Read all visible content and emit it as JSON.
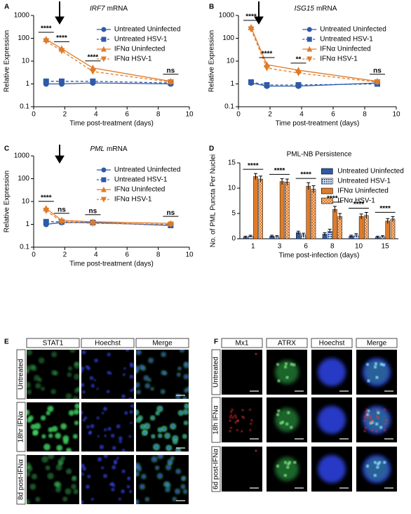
{
  "chart_data": [
    {
      "panel": "A",
      "type": "line",
      "title_italic": "IRF7",
      "title": "mRNA",
      "ylabel": "Relative Expression",
      "xlabel": "Time post-treatment (days)",
      "log_y": true,
      "ylim": [
        0.1,
        1000
      ],
      "yticks": [
        0.1,
        1,
        10,
        100,
        1000
      ],
      "xlim": [
        0,
        10
      ],
      "xticks": [
        0,
        2,
        4,
        6,
        8,
        10
      ],
      "legend": "upper right",
      "x": [
        0.8,
        1.8,
        3.8,
        8.8
      ],
      "significance": [
        "****",
        "****",
        "****",
        "ns"
      ],
      "series": [
        {
          "name": "Untreated Uninfected",
          "color": "#2f5aa8",
          "marker": "circle",
          "line_style": "solid",
          "values": [
            1.0,
            1.0,
            1.1,
            1.0
          ]
        },
        {
          "name": "Untreated HSV-1",
          "color": "#2f5aa8",
          "marker": "square",
          "line_style": "dashed",
          "values": [
            1.3,
            1.3,
            1.3,
            1.1
          ]
        },
        {
          "name": "IFNα Uninfected",
          "color": "#e07b28",
          "marker": "triangle-up",
          "line_style": "solid",
          "values": [
            90,
            35,
            5,
            1.3
          ]
        },
        {
          "name": "IFNα HSV-1",
          "color": "#e07b28",
          "marker": "triangle-down",
          "line_style": "dashed",
          "values": [
            75,
            28,
            3.5,
            1.2
          ]
        }
      ]
    },
    {
      "panel": "B",
      "type": "line",
      "title_italic": "ISG15",
      "title": "mRNA",
      "ylabel": "Relative Expression",
      "xlabel": "Time post-treatment (days)",
      "log_y": true,
      "ylim": [
        0.1,
        1000
      ],
      "yticks": [
        0.1,
        1,
        10,
        100,
        1000
      ],
      "xlim": [
        0,
        10
      ],
      "xticks": [
        0,
        2,
        4,
        6,
        8,
        10
      ],
      "legend": "upper right",
      "x": [
        0.8,
        1.8,
        3.8,
        8.8
      ],
      "significance": [
        "****",
        "****",
        "**",
        "ns"
      ],
      "series": [
        {
          "name": "Untreated Uninfected",
          "color": "#2f5aa8",
          "marker": "circle",
          "line_style": "solid",
          "values": [
            1.1,
            0.8,
            0.8,
            1.1
          ]
        },
        {
          "name": "Untreated HSV-1",
          "color": "#2f5aa8",
          "marker": "square",
          "line_style": "dashed",
          "values": [
            1.2,
            0.9,
            0.9,
            1.0
          ]
        },
        {
          "name": "IFNα Uninfected",
          "color": "#e07b28",
          "marker": "triangle-up",
          "line_style": "solid",
          "values": [
            300,
            7,
            4,
            1.3
          ]
        },
        {
          "name": "IFNα HSV-1",
          "color": "#e07b28",
          "marker": "triangle-down",
          "line_style": "dashed",
          "values": [
            250,
            5,
            3,
            1.2
          ]
        }
      ]
    },
    {
      "panel": "C",
      "type": "line",
      "title_italic": "PML",
      "title": "mRNA",
      "ylabel": "Relative Expression",
      "xlabel": "Time post-treatment (days)",
      "log_y": true,
      "ylim": [
        0.1,
        1000
      ],
      "yticks": [
        0.1,
        1,
        10,
        100,
        1000
      ],
      "xlim": [
        0,
        10
      ],
      "xticks": [
        0,
        2,
        4,
        6,
        8,
        10
      ],
      "legend": "upper right",
      "x": [
        0.8,
        1.8,
        3.8,
        8.8
      ],
      "significance": [
        "****",
        "ns",
        "ns",
        "ns"
      ],
      "series": [
        {
          "name": "Untreated Uninfected",
          "color": "#2f5aa8",
          "marker": "circle",
          "line_style": "solid",
          "values": [
            1.0,
            1.2,
            1.2,
            0.9
          ]
        },
        {
          "name": "Untreated HSV-1",
          "color": "#2f5aa8",
          "marker": "square",
          "line_style": "dashed",
          "values": [
            1.3,
            1.3,
            1.2,
            0.9
          ]
        },
        {
          "name": "IFNα Uninfected",
          "color": "#e07b28",
          "marker": "triangle-up",
          "line_style": "solid",
          "values": [
            5,
            1.5,
            1.3,
            1.1
          ]
        },
        {
          "name": "IFNα HSV-1",
          "color": "#e07b28",
          "marker": "triangle-down",
          "line_style": "dashed",
          "values": [
            4,
            1.3,
            1.1,
            1.0
          ]
        }
      ]
    },
    {
      "panel": "D",
      "type": "bar",
      "title": "PML-NB Persistence",
      "ylabel": "No. of PML Puncta Per Nuclei",
      "xlabel": "Time post-infection (days)",
      "ylim": [
        0,
        15
      ],
      "yticks": [
        0,
        5,
        10,
        15
      ],
      "legend": "upper right",
      "categories": [
        "1",
        "3",
        "6",
        "8",
        "10",
        "15"
      ],
      "significance": [
        "****",
        "****",
        "****",
        "****",
        "****",
        "****"
      ],
      "series": [
        {
          "name": "Untreated Uninfected",
          "color": "#2f5aa8",
          "pattern": "solid",
          "values": [
            0.3,
            0.5,
            1.2,
            0.9,
            0.5,
            0.3
          ],
          "errors": [
            0.2,
            0.2,
            0.3,
            0.3,
            0.2,
            0.2
          ]
        },
        {
          "name": "Untreated HSV-1",
          "color": "#2f5aa8",
          "pattern": "dots",
          "values": [
            0.5,
            0.4,
            0.8,
            1.5,
            0.7,
            0.4
          ],
          "errors": [
            0.2,
            0.2,
            0.3,
            0.4,
            0.3,
            0.2
          ]
        },
        {
          "name": "IFNα Uninfected",
          "color": "#e07b28",
          "pattern": "solid",
          "values": [
            12.3,
            11.3,
            10.4,
            5.8,
            4.4,
            3.5
          ],
          "errors": [
            0.6,
            0.6,
            0.7,
            0.6,
            0.5,
            0.5
          ]
        },
        {
          "name": "IFNα HSV-1",
          "color": "#e07b28",
          "pattern": "checker",
          "values": [
            11.8,
            11.2,
            9.8,
            4.4,
            4.6,
            3.9
          ],
          "errors": [
            0.6,
            0.6,
            0.7,
            0.6,
            0.6,
            0.5
          ]
        }
      ]
    }
  ],
  "images": [
    {
      "panel": "E",
      "columns": [
        {
          "label": "STAT1",
          "color": "#22b14c"
        },
        {
          "label": "Hoechst",
          "color": "#2a2adf"
        },
        {
          "label": "Merge",
          "color": "#000000"
        }
      ],
      "rows": [
        "Untreated",
        "18hr IFNα",
        "8d post-IFNα"
      ]
    },
    {
      "panel": "F",
      "columns": [
        {
          "label": "Mx1",
          "color": "#e02020"
        },
        {
          "label": "ATRX",
          "color": "#22b14c"
        },
        {
          "label": "Hoechst",
          "color": "#2a2adf"
        },
        {
          "label": "Merge",
          "color": "#000000"
        }
      ],
      "rows": [
        "Untreated",
        "18h IFNα",
        "6d post-IFNα"
      ]
    }
  ]
}
